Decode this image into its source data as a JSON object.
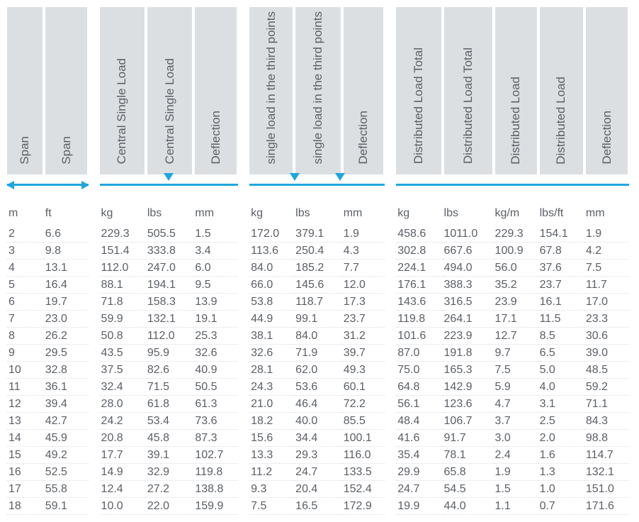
{
  "colors": {
    "header_bg": "#dcdfe2",
    "text": "#5a5f66",
    "accent": "#1ea7df",
    "row_border": "#d9dde1",
    "background": "#ffffff"
  },
  "typography": {
    "family": "Arial, Helvetica, sans-serif",
    "header_fontsize_pt": 13,
    "unit_fontsize_pt": 12,
    "cell_fontsize_pt": 12
  },
  "groups": {
    "span": {
      "cols": 2,
      "icon": "double-arrow"
    },
    "central": {
      "cols": 3,
      "icon": "line-one-triangle",
      "tri_positions_pct": [
        50
      ]
    },
    "third": {
      "cols": 3,
      "icon": "line-two-triangles",
      "tri_positions_pct": [
        33.3,
        66.6
      ]
    },
    "distributed": {
      "cols": 5,
      "icon": "line"
    }
  },
  "headers": [
    "Span",
    "Span",
    "Central Single Load",
    "Central Single Load",
    "Deflection",
    "single load in the\nthird points",
    "single load in the\nthird points",
    "Deflection",
    "Distributed Load Total",
    "Distributed Load Total",
    "Distributed Load",
    "Distributed Load",
    "Deflection"
  ],
  "units": [
    "m",
    "ft",
    "kg",
    "lbs",
    "mm",
    "kg",
    "lbs",
    "mm",
    "kg",
    "lbs",
    "kg/m",
    "lbs/ft",
    "mm"
  ],
  "rows": [
    [
      "2",
      "6.6",
      "229.3",
      "505.5",
      "1.5",
      "172.0",
      "379.1",
      "1.9",
      "458.6",
      "1011.0",
      "229.3",
      "154.1",
      "1.9"
    ],
    [
      "3",
      "9.8",
      "151.4",
      "333.8",
      "3.4",
      "113.6",
      "250.4",
      "4.3",
      "302.8",
      "667.6",
      "100.9",
      "67.8",
      "4.2"
    ],
    [
      "4",
      "13.1",
      "112.0",
      "247.0",
      "6.0",
      "84.0",
      "185.2",
      "7.7",
      "224.1",
      "494.0",
      "56.0",
      "37.6",
      "7.5"
    ],
    [
      "5",
      "16.4",
      "88.1",
      "194.1",
      "9.5",
      "66.0",
      "145.6",
      "12.0",
      "176.1",
      "388.3",
      "35.2",
      "23.7",
      "11.7"
    ],
    [
      "6",
      "19.7",
      "71.8",
      "158.3",
      "13.9",
      "53.8",
      "118.7",
      "17.3",
      "143.6",
      "316.5",
      "23.9",
      "16.1",
      "17.0"
    ],
    [
      "7",
      "23.0",
      "59.9",
      "132.1",
      "19.1",
      "44.9",
      "99.1",
      "23.7",
      "119.8",
      "264.1",
      "17.1",
      "11.5",
      "23.3"
    ],
    [
      "8",
      "26.2",
      "50.8",
      "112.0",
      "25.3",
      "38.1",
      "84.0",
      "31.2",
      "101.6",
      "223.9",
      "12.7",
      "8.5",
      "30.6"
    ],
    [
      "9",
      "29.5",
      "43.5",
      "95.9",
      "32.6",
      "32.6",
      "71.9",
      "39.7",
      "87.0",
      "191.8",
      "9.7",
      "6.5",
      "39.0"
    ],
    [
      "10",
      "32.8",
      "37.5",
      "82.6",
      "40.9",
      "28.1",
      "62.0",
      "49.3",
      "75.0",
      "165.3",
      "7.5",
      "5.0",
      "48.5"
    ],
    [
      "11",
      "36.1",
      "32.4",
      "71.5",
      "50.5",
      "24.3",
      "53.6",
      "60.1",
      "64.8",
      "142.9",
      "5.9",
      "4.0",
      "59.2"
    ],
    [
      "12",
      "39.4",
      "28.0",
      "61.8",
      "61.3",
      "21.0",
      "46.4",
      "72.2",
      "56.1",
      "123.6",
      "4.7",
      "3.1",
      "71.1"
    ],
    [
      "13",
      "42.7",
      "24.2",
      "53.4",
      "73.6",
      "18.2",
      "40.0",
      "85.5",
      "48.4",
      "106.7",
      "3.7",
      "2.5",
      "84.3"
    ],
    [
      "14",
      "45.9",
      "20.8",
      "45.8",
      "87.3",
      "15.6",
      "34.4",
      "100.1",
      "41.6",
      "91.7",
      "3.0",
      "2.0",
      "98.8"
    ],
    [
      "15",
      "49.2",
      "17.7",
      "39.1",
      "102.7",
      "13.3",
      "29.3",
      "116.0",
      "35.4",
      "78.1",
      "2.4",
      "1.6",
      "114.7"
    ],
    [
      "16",
      "52.5",
      "14.9",
      "32.9",
      "119.8",
      "11.2",
      "24.7",
      "133.5",
      "29.9",
      "65.8",
      "1.9",
      "1.3",
      "132.1"
    ],
    [
      "17",
      "55.8",
      "12.4",
      "27.2",
      "138.8",
      "9.3",
      "20.4",
      "152.4",
      "24.7",
      "54.5",
      "1.5",
      "1.0",
      "151.0"
    ],
    [
      "18",
      "59.1",
      "10.0",
      "22.0",
      "159.9",
      "7.5",
      "16.5",
      "172.9",
      "19.9",
      "44.0",
      "1.1",
      "0.7",
      "171.6"
    ]
  ]
}
